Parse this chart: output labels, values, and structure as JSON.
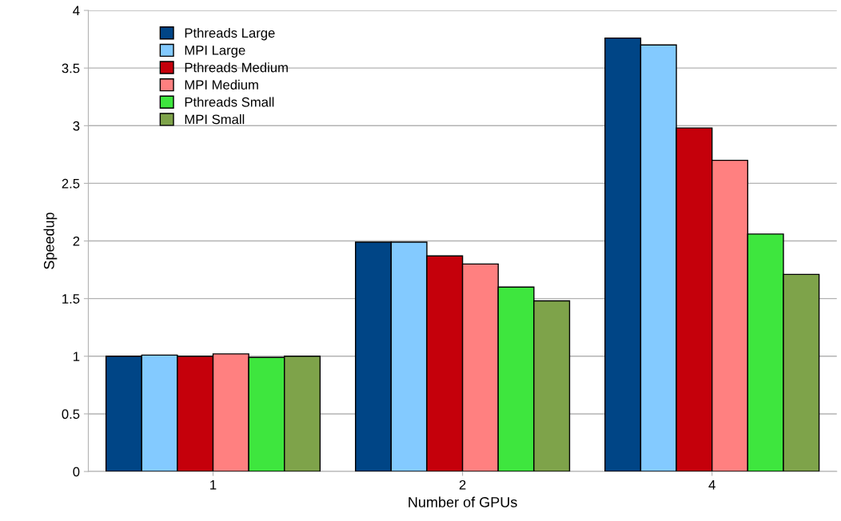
{
  "chart_data": {
    "type": "bar",
    "xlabel": "Number of GPUs",
    "ylabel": "Speedup",
    "categories": [
      "1",
      "2",
      "4"
    ],
    "series": [
      {
        "name": "Pthreads Large",
        "color": "#004586",
        "values": [
          1.0,
          1.99,
          3.76
        ]
      },
      {
        "name": "MPI Large",
        "color": "#83caff",
        "values": [
          1.01,
          1.99,
          3.7
        ]
      },
      {
        "name": "Pthreads Medium",
        "color": "#c5000b",
        "values": [
          1.0,
          1.87,
          2.98
        ]
      },
      {
        "name": "MPI Medium",
        "color": "#ff8080",
        "values": [
          1.02,
          1.8,
          2.7
        ]
      },
      {
        "name": "Pthreads Small",
        "color": "#3ee63e",
        "values": [
          0.99,
          1.6,
          2.06
        ]
      },
      {
        "name": "MPI Small",
        "color": "#7ea34a",
        "values": [
          1.0,
          1.48,
          1.71
        ]
      }
    ],
    "ylim": [
      0,
      4
    ],
    "yticks": [
      0,
      0.5,
      1,
      1.5,
      2,
      2.5,
      3,
      3.5,
      4
    ],
    "grid": "y",
    "legend": "top left"
  }
}
